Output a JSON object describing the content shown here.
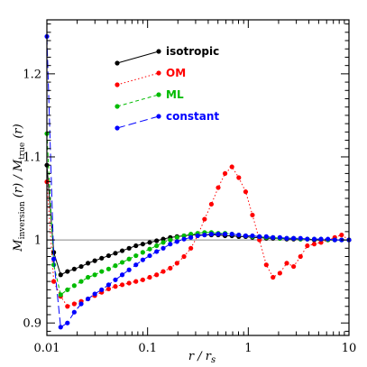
{
  "chart_data": {
    "type": "line",
    "xscale": "log",
    "xlim": [
      0.01,
      10
    ],
    "ylim": [
      0.885,
      1.265
    ],
    "x_ticks": [
      {
        "value": 0.01,
        "label": "0.01"
      },
      {
        "value": 0.1,
        "label": "0.1"
      },
      {
        "value": 1,
        "label": "1"
      },
      {
        "value": 10,
        "label": "10"
      }
    ],
    "y_ticks": [
      {
        "value": 0.9,
        "label": "0.9"
      },
      {
        "value": 1.0,
        "label": "1"
      },
      {
        "value": 1.1,
        "label": "1.1"
      },
      {
        "value": 1.2,
        "label": "1.2"
      }
    ],
    "xlabel": {
      "main": "r / r",
      "sub": "s"
    },
    "ylabel": {
      "m": "M",
      "msub": "inversion",
      "rest": " (r) / M",
      "tsub": "true",
      "tail": " (r)"
    },
    "reference_line": 1.0,
    "legend_position": "top-left",
    "series": [
      {
        "name": "isotropic",
        "color": "#000000",
        "dash": "",
        "x": [
          0.01,
          0.0117,
          0.0137,
          0.016,
          0.0187,
          0.0219,
          0.0256,
          0.0299,
          0.035,
          0.041,
          0.0479,
          0.056,
          0.0655,
          0.0766,
          0.0896,
          0.105,
          0.123,
          0.143,
          0.168,
          0.196,
          0.23,
          0.269,
          0.314,
          0.368,
          0.43,
          0.503,
          0.588,
          0.688,
          0.805,
          0.942,
          1.1,
          1.29,
          1.51,
          1.76,
          2.06,
          2.41,
          2.82,
          3.3,
          3.86,
          4.52,
          5.28,
          6.18,
          7.23,
          8.45,
          10.0
        ],
        "y": [
          1.09,
          0.985,
          0.958,
          0.962,
          0.965,
          0.968,
          0.972,
          0.975,
          0.978,
          0.981,
          0.984,
          0.987,
          0.99,
          0.993,
          0.995,
          0.997,
          0.999,
          1.001,
          1.003,
          1.004,
          1.005,
          1.006,
          1.006,
          1.006,
          1.006,
          1.006,
          1.005,
          1.005,
          1.004,
          1.004,
          1.003,
          1.003,
          1.002,
          1.002,
          1.002,
          1.001,
          1.001,
          1.001,
          1.001,
          1.0,
          1.0,
          1.0,
          1.0,
          1.0,
          1.0
        ]
      },
      {
        "name": "OM",
        "color": "#ff0000",
        "dash": "1.5,2.5",
        "x": [
          0.01,
          0.0117,
          0.0137,
          0.016,
          0.0187,
          0.0219,
          0.0256,
          0.0299,
          0.035,
          0.041,
          0.0479,
          0.056,
          0.0655,
          0.0766,
          0.0896,
          0.105,
          0.123,
          0.143,
          0.168,
          0.196,
          0.23,
          0.269,
          0.314,
          0.368,
          0.43,
          0.503,
          0.588,
          0.688,
          0.805,
          0.942,
          1.1,
          1.29,
          1.51,
          1.76,
          2.06,
          2.41,
          2.82,
          3.3,
          3.86,
          4.52,
          5.28,
          6.18,
          7.23,
          8.45,
          10.0
        ],
        "y": [
          1.07,
          0.95,
          0.932,
          0.92,
          0.923,
          0.926,
          0.929,
          0.933,
          0.937,
          0.941,
          0.944,
          0.946,
          0.948,
          0.95,
          0.952,
          0.955,
          0.958,
          0.962,
          0.966,
          0.972,
          0.98,
          0.99,
          1.005,
          1.025,
          1.043,
          1.063,
          1.08,
          1.088,
          1.075,
          1.058,
          1.03,
          1.0,
          0.97,
          0.955,
          0.96,
          0.972,
          0.968,
          0.98,
          0.993,
          0.995,
          0.997,
          1.0,
          1.003,
          1.006,
          1.0
        ]
      },
      {
        "name": "ML",
        "color": "#00bb00",
        "dash": "4,3",
        "x": [
          0.01,
          0.0117,
          0.0137,
          0.016,
          0.0187,
          0.0219,
          0.0256,
          0.0299,
          0.035,
          0.041,
          0.0479,
          0.056,
          0.0655,
          0.0766,
          0.0896,
          0.105,
          0.123,
          0.143,
          0.168,
          0.196,
          0.23,
          0.269,
          0.314,
          0.368,
          0.43,
          0.503,
          0.588,
          0.688,
          0.805,
          0.942,
          1.1,
          1.29,
          1.51,
          1.76,
          2.06,
          2.41,
          2.82,
          3.3,
          3.86,
          4.52,
          5.28,
          6.18,
          7.23,
          8.45,
          10.0
        ],
        "y": [
          1.128,
          0.97,
          0.934,
          0.94,
          0.945,
          0.95,
          0.955,
          0.958,
          0.962,
          0.965,
          0.969,
          0.973,
          0.977,
          0.981,
          0.985,
          0.989,
          0.993,
          0.997,
          1.0,
          1.003,
          1.005,
          1.007,
          1.008,
          1.009,
          1.009,
          1.008,
          1.008,
          1.007,
          1.006,
          1.005,
          1.004,
          1.004,
          1.003,
          1.003,
          1.002,
          1.002,
          1.002,
          1.001,
          1.001,
          1.001,
          1.001,
          1.0,
          1.0,
          1.0,
          1.0
        ]
      },
      {
        "name": "constant",
        "color": "#0000ff",
        "dash": "9,4",
        "x": [
          0.01,
          0.0117,
          0.0137,
          0.016,
          0.0187,
          0.0219,
          0.0256,
          0.0299,
          0.035,
          0.041,
          0.0479,
          0.056,
          0.0655,
          0.0766,
          0.0896,
          0.105,
          0.123,
          0.143,
          0.168,
          0.196,
          0.23,
          0.269,
          0.314,
          0.368,
          0.43,
          0.503,
          0.588,
          0.688,
          0.805,
          0.942,
          1.1,
          1.29,
          1.51,
          1.76,
          2.06,
          2.41,
          2.82,
          3.3,
          3.86,
          4.52,
          5.28,
          6.18,
          7.23,
          8.45,
          10.0
        ],
        "y": [
          1.245,
          0.977,
          0.895,
          0.9,
          0.913,
          0.923,
          0.929,
          0.935,
          0.94,
          0.946,
          0.952,
          0.958,
          0.964,
          0.97,
          0.976,
          0.981,
          0.986,
          0.99,
          0.995,
          0.998,
          1.001,
          1.003,
          1.005,
          1.006,
          1.007,
          1.007,
          1.007,
          1.007,
          1.006,
          1.005,
          1.005,
          1.004,
          1.004,
          1.003,
          1.003,
          1.002,
          1.002,
          1.002,
          1.001,
          1.001,
          1.001,
          1.001,
          1.0,
          1.0,
          1.0
        ]
      }
    ]
  }
}
